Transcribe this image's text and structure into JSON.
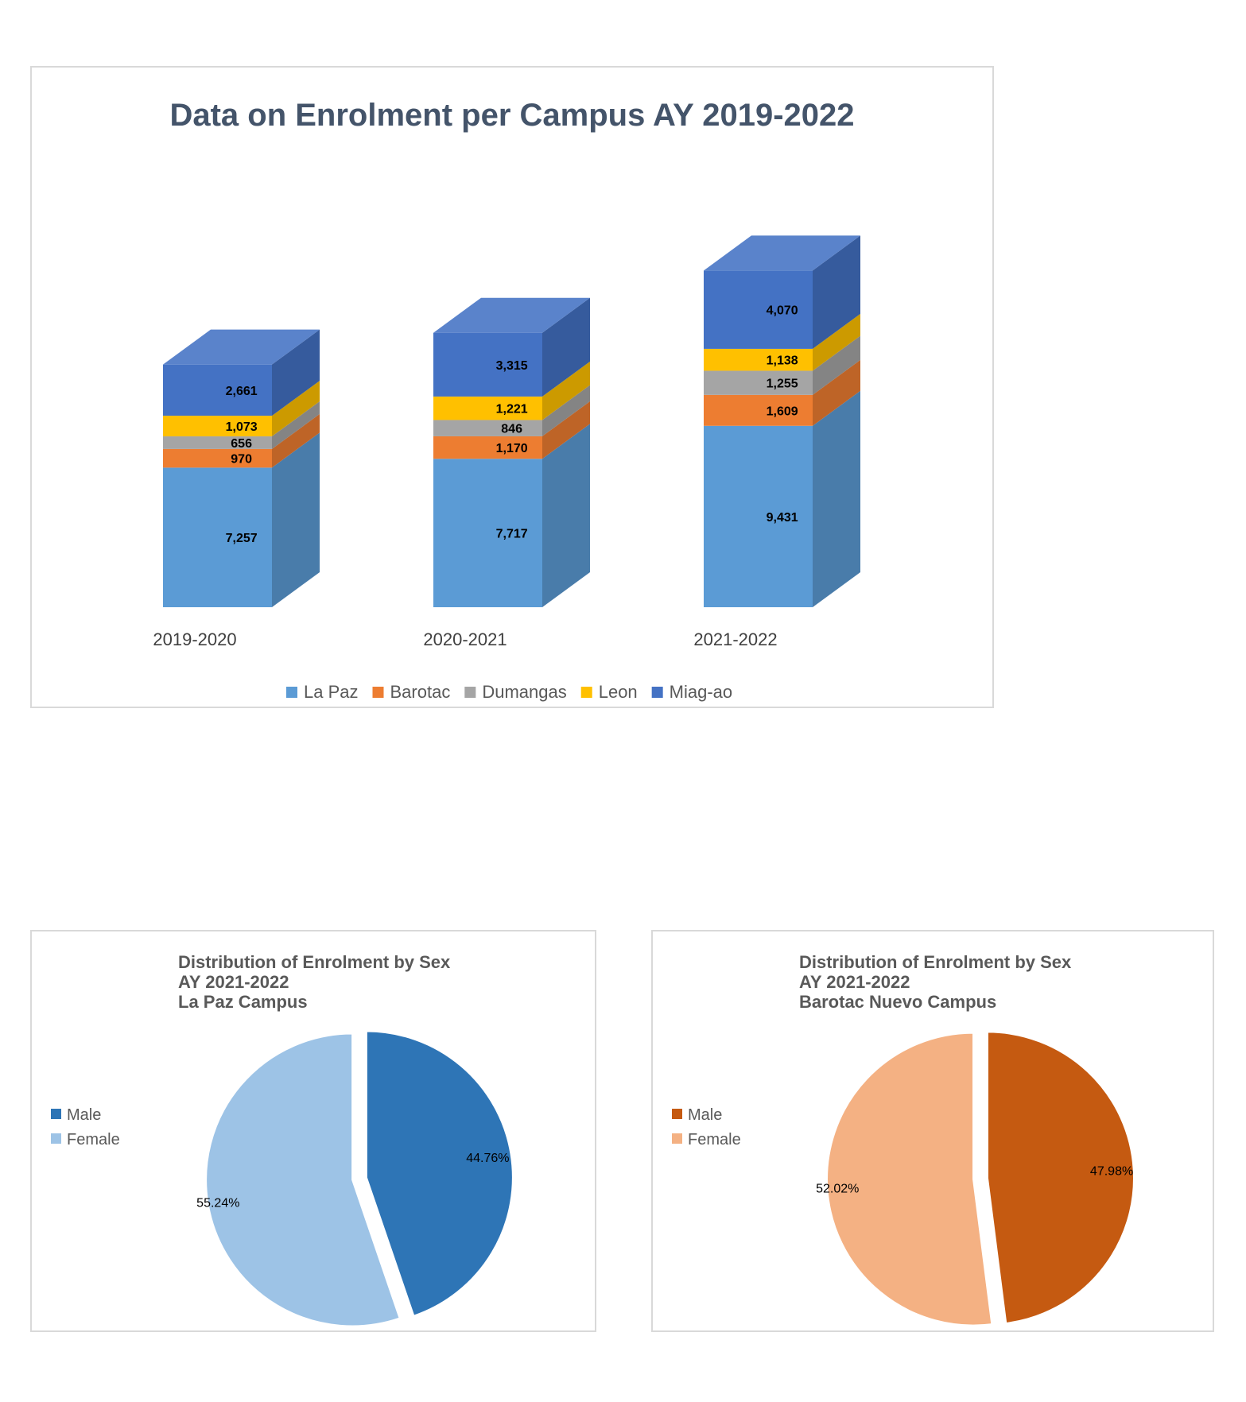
{
  "chart_data": [
    {
      "type": "bar",
      "stacked": true,
      "style": "3d",
      "title": "Data on Enrolment per Campus AY 2019-2022",
      "categories": [
        "2019-2020",
        "2020-2021",
        "2021-2022"
      ],
      "series": [
        {
          "name": "La Paz",
          "values": [
            7257,
            7717,
            9431
          ],
          "color": "#5b9bd5"
        },
        {
          "name": "Barotac",
          "values": [
            970,
            1170,
            1609
          ],
          "color": "#ed7d31"
        },
        {
          "name": "Dumangas",
          "values": [
            656,
            846,
            1255
          ],
          "color": "#a5a5a5"
        },
        {
          "name": "Leon",
          "values": [
            1073,
            1221,
            1138
          ],
          "color": "#ffc000"
        },
        {
          "name": "Miag-ao",
          "values": [
            2661,
            3315,
            4070
          ],
          "color": "#4472c4"
        }
      ],
      "data_labels": [
        [
          "7,257",
          "970",
          "656",
          "1,073",
          "2,661"
        ],
        [
          "7,717",
          "1,170",
          "846",
          "1,221",
          "3,315"
        ],
        [
          "9,431",
          "1,609",
          "1,255",
          "1,138",
          "4,070"
        ]
      ],
      "legend": "bottom",
      "grid": false
    },
    {
      "type": "pie",
      "title_lines": [
        "Distribution of Enrolment by Sex",
        "AY 2021-2022",
        "La Paz Campus"
      ],
      "categories": [
        "Male",
        "Female"
      ],
      "values": [
        44.76,
        55.24
      ],
      "labels": [
        "44.76%",
        "55.24%"
      ],
      "colors": [
        "#2e75b6",
        "#9dc3e6"
      ],
      "legend": "left"
    },
    {
      "type": "pie",
      "title_lines": [
        "Distribution of Enrolment by Sex",
        "AY 2021-2022",
        "Barotac Nuevo Campus"
      ],
      "categories": [
        "Male",
        "Female"
      ],
      "values": [
        47.98,
        52.02
      ],
      "labels": [
        "47.98%",
        "52.02%"
      ],
      "colors": [
        "#c55a11",
        "#f4b183"
      ],
      "legend": "left"
    }
  ]
}
